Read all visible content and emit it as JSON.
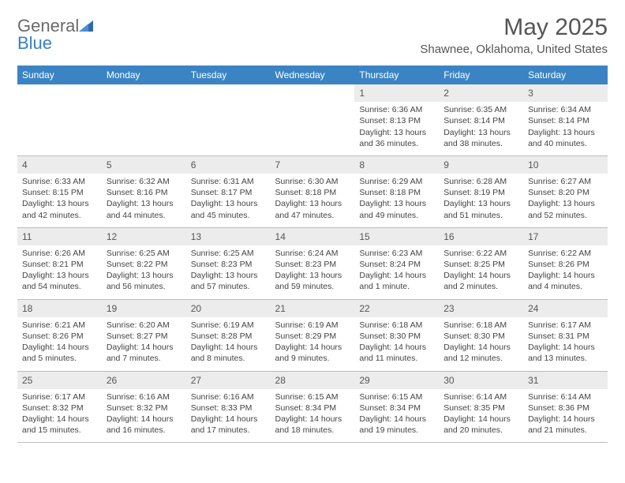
{
  "brand": {
    "word1": "General",
    "word2": "Blue"
  },
  "title": "May 2025",
  "location": "Shawnee, Oklahoma, United States",
  "header_bg": "#3b84c4",
  "header_fg": "#ffffff",
  "daynum_bg": "#ececec",
  "text_color": "#444444",
  "border_color": "#bcbcbc",
  "columns": [
    "Sunday",
    "Monday",
    "Tuesday",
    "Wednesday",
    "Thursday",
    "Friday",
    "Saturday"
  ],
  "weeks": [
    [
      null,
      null,
      null,
      null,
      {
        "n": "1",
        "sr": "Sunrise: 6:36 AM",
        "ss": "Sunset: 8:13 PM",
        "dl": "Daylight: 13 hours and 36 minutes."
      },
      {
        "n": "2",
        "sr": "Sunrise: 6:35 AM",
        "ss": "Sunset: 8:14 PM",
        "dl": "Daylight: 13 hours and 38 minutes."
      },
      {
        "n": "3",
        "sr": "Sunrise: 6:34 AM",
        "ss": "Sunset: 8:14 PM",
        "dl": "Daylight: 13 hours and 40 minutes."
      }
    ],
    [
      {
        "n": "4",
        "sr": "Sunrise: 6:33 AM",
        "ss": "Sunset: 8:15 PM",
        "dl": "Daylight: 13 hours and 42 minutes."
      },
      {
        "n": "5",
        "sr": "Sunrise: 6:32 AM",
        "ss": "Sunset: 8:16 PM",
        "dl": "Daylight: 13 hours and 44 minutes."
      },
      {
        "n": "6",
        "sr": "Sunrise: 6:31 AM",
        "ss": "Sunset: 8:17 PM",
        "dl": "Daylight: 13 hours and 45 minutes."
      },
      {
        "n": "7",
        "sr": "Sunrise: 6:30 AM",
        "ss": "Sunset: 8:18 PM",
        "dl": "Daylight: 13 hours and 47 minutes."
      },
      {
        "n": "8",
        "sr": "Sunrise: 6:29 AM",
        "ss": "Sunset: 8:18 PM",
        "dl": "Daylight: 13 hours and 49 minutes."
      },
      {
        "n": "9",
        "sr": "Sunrise: 6:28 AM",
        "ss": "Sunset: 8:19 PM",
        "dl": "Daylight: 13 hours and 51 minutes."
      },
      {
        "n": "10",
        "sr": "Sunrise: 6:27 AM",
        "ss": "Sunset: 8:20 PM",
        "dl": "Daylight: 13 hours and 52 minutes."
      }
    ],
    [
      {
        "n": "11",
        "sr": "Sunrise: 6:26 AM",
        "ss": "Sunset: 8:21 PM",
        "dl": "Daylight: 13 hours and 54 minutes."
      },
      {
        "n": "12",
        "sr": "Sunrise: 6:25 AM",
        "ss": "Sunset: 8:22 PM",
        "dl": "Daylight: 13 hours and 56 minutes."
      },
      {
        "n": "13",
        "sr": "Sunrise: 6:25 AM",
        "ss": "Sunset: 8:23 PM",
        "dl": "Daylight: 13 hours and 57 minutes."
      },
      {
        "n": "14",
        "sr": "Sunrise: 6:24 AM",
        "ss": "Sunset: 8:23 PM",
        "dl": "Daylight: 13 hours and 59 minutes."
      },
      {
        "n": "15",
        "sr": "Sunrise: 6:23 AM",
        "ss": "Sunset: 8:24 PM",
        "dl": "Daylight: 14 hours and 1 minute."
      },
      {
        "n": "16",
        "sr": "Sunrise: 6:22 AM",
        "ss": "Sunset: 8:25 PM",
        "dl": "Daylight: 14 hours and 2 minutes."
      },
      {
        "n": "17",
        "sr": "Sunrise: 6:22 AM",
        "ss": "Sunset: 8:26 PM",
        "dl": "Daylight: 14 hours and 4 minutes."
      }
    ],
    [
      {
        "n": "18",
        "sr": "Sunrise: 6:21 AM",
        "ss": "Sunset: 8:26 PM",
        "dl": "Daylight: 14 hours and 5 minutes."
      },
      {
        "n": "19",
        "sr": "Sunrise: 6:20 AM",
        "ss": "Sunset: 8:27 PM",
        "dl": "Daylight: 14 hours and 7 minutes."
      },
      {
        "n": "20",
        "sr": "Sunrise: 6:19 AM",
        "ss": "Sunset: 8:28 PM",
        "dl": "Daylight: 14 hours and 8 minutes."
      },
      {
        "n": "21",
        "sr": "Sunrise: 6:19 AM",
        "ss": "Sunset: 8:29 PM",
        "dl": "Daylight: 14 hours and 9 minutes."
      },
      {
        "n": "22",
        "sr": "Sunrise: 6:18 AM",
        "ss": "Sunset: 8:30 PM",
        "dl": "Daylight: 14 hours and 11 minutes."
      },
      {
        "n": "23",
        "sr": "Sunrise: 6:18 AM",
        "ss": "Sunset: 8:30 PM",
        "dl": "Daylight: 14 hours and 12 minutes."
      },
      {
        "n": "24",
        "sr": "Sunrise: 6:17 AM",
        "ss": "Sunset: 8:31 PM",
        "dl": "Daylight: 14 hours and 13 minutes."
      }
    ],
    [
      {
        "n": "25",
        "sr": "Sunrise: 6:17 AM",
        "ss": "Sunset: 8:32 PM",
        "dl": "Daylight: 14 hours and 15 minutes."
      },
      {
        "n": "26",
        "sr": "Sunrise: 6:16 AM",
        "ss": "Sunset: 8:32 PM",
        "dl": "Daylight: 14 hours and 16 minutes."
      },
      {
        "n": "27",
        "sr": "Sunrise: 6:16 AM",
        "ss": "Sunset: 8:33 PM",
        "dl": "Daylight: 14 hours and 17 minutes."
      },
      {
        "n": "28",
        "sr": "Sunrise: 6:15 AM",
        "ss": "Sunset: 8:34 PM",
        "dl": "Daylight: 14 hours and 18 minutes."
      },
      {
        "n": "29",
        "sr": "Sunrise: 6:15 AM",
        "ss": "Sunset: 8:34 PM",
        "dl": "Daylight: 14 hours and 19 minutes."
      },
      {
        "n": "30",
        "sr": "Sunrise: 6:14 AM",
        "ss": "Sunset: 8:35 PM",
        "dl": "Daylight: 14 hours and 20 minutes."
      },
      {
        "n": "31",
        "sr": "Sunrise: 6:14 AM",
        "ss": "Sunset: 8:36 PM",
        "dl": "Daylight: 14 hours and 21 minutes."
      }
    ]
  ]
}
